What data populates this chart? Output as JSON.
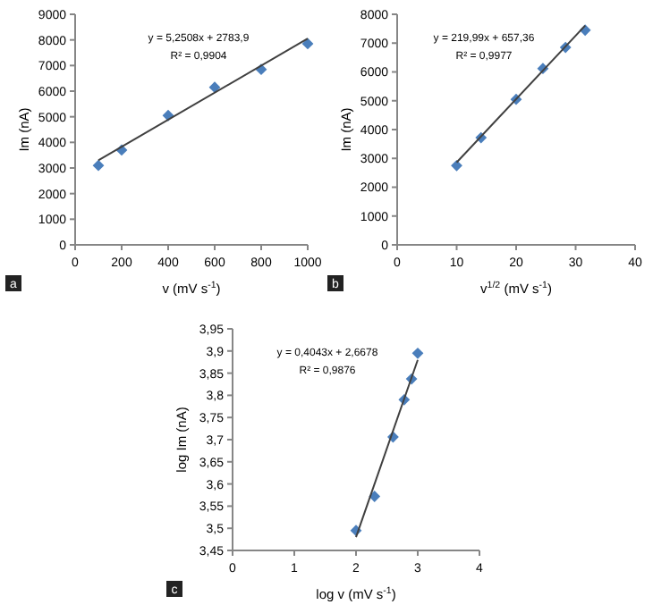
{
  "chart_data": [
    {
      "type": "scatter",
      "xlabel": "v (mV s$^{-1}$)",
      "ylabel": "Im (nA)",
      "marker": "diamond",
      "xlim": [
        0,
        1000
      ],
      "xticks": [
        0,
        200,
        400,
        600,
        800,
        1000
      ],
      "ylim": [
        0,
        9000
      ],
      "yticks": [
        0,
        1000,
        2000,
        3000,
        4000,
        5000,
        6000,
        7000,
        8000,
        9000
      ],
      "annotations": [
        "y = 5,2508x + 2783,9",
        "R² = 0,9904",
        "a"
      ],
      "series": [
        {
          "color": "#4a7ebb",
          "x": [
            100,
            200,
            400,
            600,
            800,
            1000
          ],
          "values": [
            3100,
            3700,
            5050,
            6150,
            6850,
            7850
          ]
        },
        {
          "type": "line",
          "marker": "none",
          "color": "#404040",
          "x": [
            100,
            1000
          ],
          "values": [
            3300,
            8050
          ]
        }
      ]
    },
    {
      "type": "scatter",
      "xlabel": "v$^{1/2}$ (mV s$^{-1}$)",
      "ylabel": "Im (nA)",
      "marker": "diamond",
      "xlim": [
        0,
        40
      ],
      "xticks": [
        0,
        10,
        20,
        30,
        40
      ],
      "ylim": [
        0,
        8000
      ],
      "yticks": [
        0,
        1000,
        2000,
        3000,
        4000,
        5000,
        6000,
        7000,
        8000
      ],
      "annotations": [
        "y = 219,99x + 657,36",
        "R² = 0,9977",
        "b"
      ],
      "series": [
        {
          "color": "#4a7ebb",
          "x": [
            10,
            14.1,
            20,
            24.5,
            28.3,
            31.6
          ],
          "values": [
            2750,
            3720,
            5050,
            6120,
            6850,
            7450
          ]
        },
        {
          "type": "line",
          "marker": "none",
          "color": "#404040",
          "x": [
            10,
            31.6
          ],
          "values": [
            2860,
            7610
          ]
        }
      ]
    },
    {
      "type": "scatter",
      "xlabel": "log v (mV s$^{-1}$)",
      "ylabel": "log Im (nA)",
      "marker": "diamond",
      "xlim": [
        0,
        4
      ],
      "xticks": [
        0,
        1,
        2,
        3,
        4
      ],
      "ylim": [
        3.45,
        3.95
      ],
      "yticks": [
        {
          "value": 3.45,
          "label": "3,45"
        },
        {
          "value": 3.5,
          "label": "3,5"
        },
        {
          "value": 3.55,
          "label": "3,55"
        },
        {
          "value": 3.6,
          "label": "3,6"
        },
        {
          "value": 3.65,
          "label": "3,65"
        },
        {
          "value": 3.7,
          "label": "3,7"
        },
        {
          "value": 3.75,
          "label": "3,75"
        },
        {
          "value": 3.8,
          "label": "3,8"
        },
        {
          "value": 3.85,
          "label": "3,85"
        },
        {
          "value": 3.9,
          "label": "3,9"
        },
        {
          "value": 3.95,
          "label": "3,95"
        }
      ],
      "annotations": [
        "y = 0,4043x + 2,6678",
        "R² = 0,9876",
        "c"
      ],
      "series": [
        {
          "color": "#4a7ebb",
          "x": [
            2,
            2.3,
            2.6,
            2.78,
            2.9,
            3.0
          ],
          "values": [
            3.495,
            3.572,
            3.706,
            3.79,
            3.837,
            3.895
          ]
        },
        {
          "type": "line",
          "marker": "none",
          "color": "#404040",
          "x": [
            2,
            3
          ],
          "values": [
            3.48,
            3.88
          ]
        }
      ]
    }
  ]
}
